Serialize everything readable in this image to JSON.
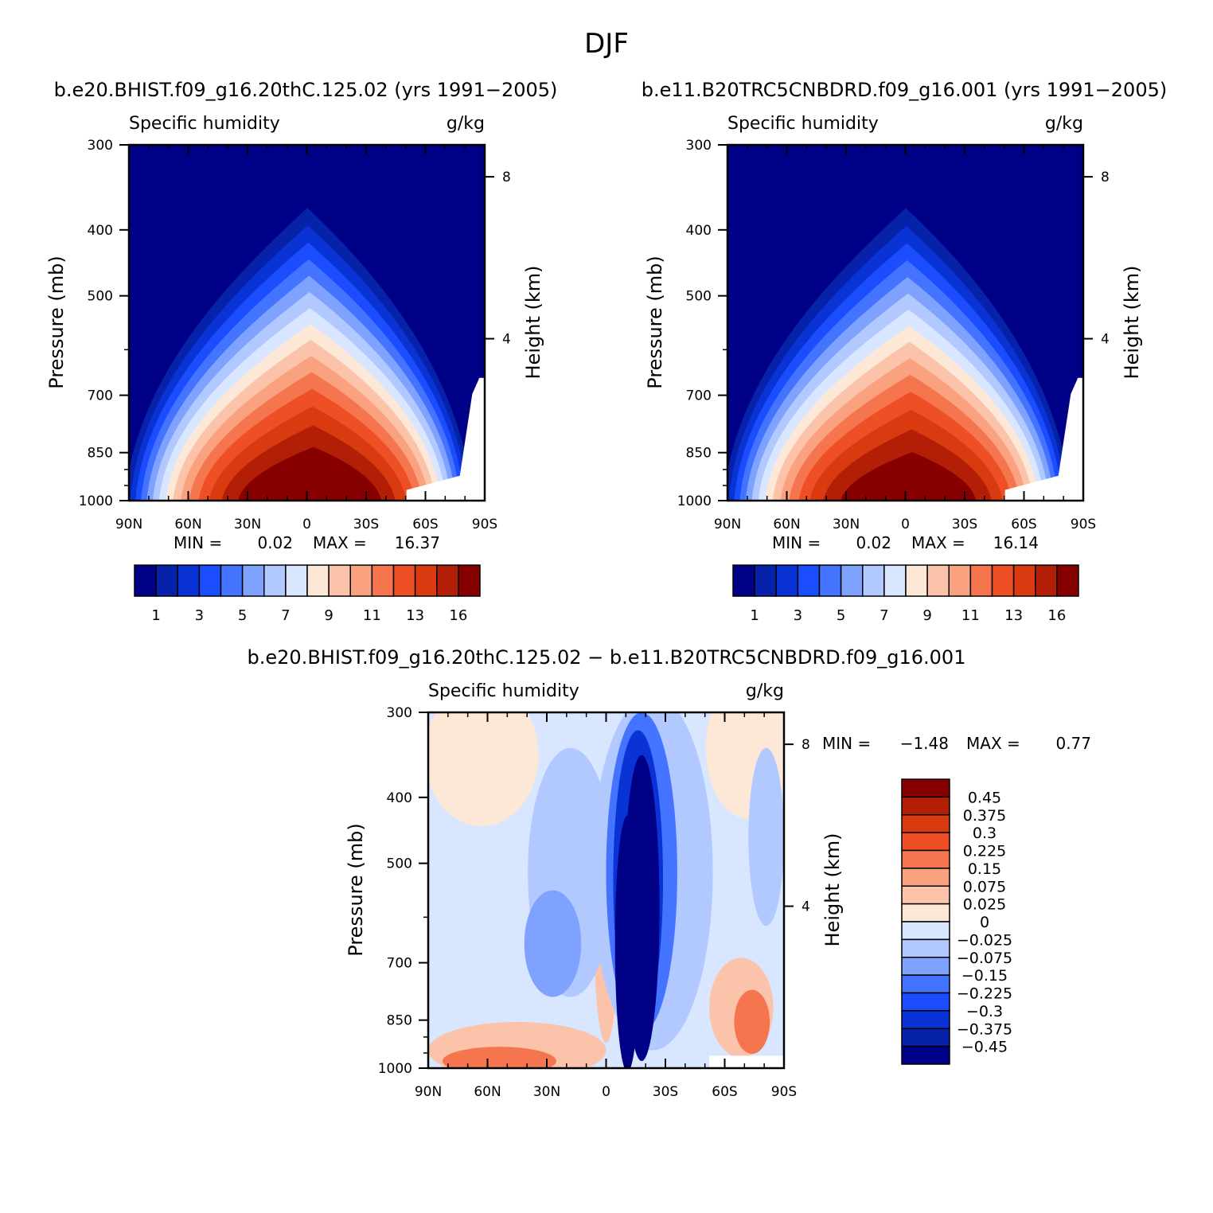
{
  "figure_title": "DJF",
  "chart_data": [
    {
      "type": "heatmap",
      "title": "b.e20.BHIST.f09_g16.20thC.125.02 (yrs 1991-2005)",
      "variable_label": "Specific humidity",
      "units": "g/kg",
      "ylabel": "Pressure (mb)",
      "ylabel_right": "Height (km)",
      "x_ticks": [
        "90N",
        "60N",
        "30N",
        "0",
        "30S",
        "60S",
        "90S"
      ],
      "y_ticks": [
        "300",
        "400",
        "500",
        "700",
        "850",
        "1000"
      ],
      "y_ticks_right": [
        "8",
        "4"
      ],
      "min_label": "MIN =",
      "min_value": "0.02",
      "max_label": "MAX =",
      "max_value": "16.37",
      "colorbar_labels": [
        "1",
        "3",
        "5",
        "7",
        "9",
        "11",
        "13",
        "16"
      ],
      "field_peak": 16.37
    },
    {
      "type": "heatmap",
      "title": "b.e11.B20TRC5CNBDRD.f09_g16.001 (yrs 1991-2005)",
      "variable_label": "Specific humidity",
      "units": "g/kg",
      "ylabel": "Pressure (mb)",
      "ylabel_right": "Height (km)",
      "x_ticks": [
        "90N",
        "60N",
        "30N",
        "0",
        "30S",
        "60S",
        "90S"
      ],
      "y_ticks": [
        "300",
        "400",
        "500",
        "700",
        "850",
        "1000"
      ],
      "y_ticks_right": [
        "8",
        "4"
      ],
      "min_label": "MIN =",
      "min_value": "0.02",
      "max_label": "MAX =",
      "max_value": "16.14",
      "colorbar_labels": [
        "1",
        "3",
        "5",
        "7",
        "9",
        "11",
        "13",
        "16"
      ],
      "field_peak": 16.14
    },
    {
      "type": "heatmap",
      "title": "b.e20.BHIST.f09_g16.20thC.125.02 - b.e11.B20TRC5CNBDRD.f09_g16.001",
      "variable_label": "Specific humidity",
      "units": "g/kg",
      "ylabel": "Pressure (mb)",
      "ylabel_right": "Height (km)",
      "x_ticks": [
        "90N",
        "60N",
        "30N",
        "0",
        "30S",
        "60S",
        "90S"
      ],
      "y_ticks": [
        "300",
        "400",
        "500",
        "700",
        "850",
        "1000"
      ],
      "y_ticks_right": [
        "8",
        "4"
      ],
      "min_label": "MIN =",
      "min_value": "-1.48",
      "max_label": "MAX =",
      "max_value": "0.77",
      "colorbar_labels": [
        "0.45",
        "0.375",
        "0.3",
        "0.225",
        "0.15",
        "0.075",
        "0.025",
        "0",
        "-0.025",
        "-0.075",
        "-0.15",
        "-0.225",
        "-0.3",
        "-0.375",
        "-0.45"
      ]
    }
  ],
  "colors": {
    "abs_scale": [
      "#000086",
      "#0522a8",
      "#0a33d6",
      "#1b4dff",
      "#4474ff",
      "#7fa2ff",
      "#b1c9ff",
      "#d8e7ff",
      "#fde7d7",
      "#fbc4aa",
      "#faa27f",
      "#f5764e",
      "#ee4f24",
      "#d93a0f",
      "#b31e07",
      "#870000"
    ],
    "diff_scale": [
      "#870000",
      "#b31e07",
      "#d93a0f",
      "#ee4f24",
      "#f5764e",
      "#faa27f",
      "#fbc4aa",
      "#fde7d7",
      "#d8e7ff",
      "#b1c9ff",
      "#7fa2ff",
      "#4474ff",
      "#1b4dff",
      "#0a33d6",
      "#0522a8",
      "#000086"
    ]
  }
}
